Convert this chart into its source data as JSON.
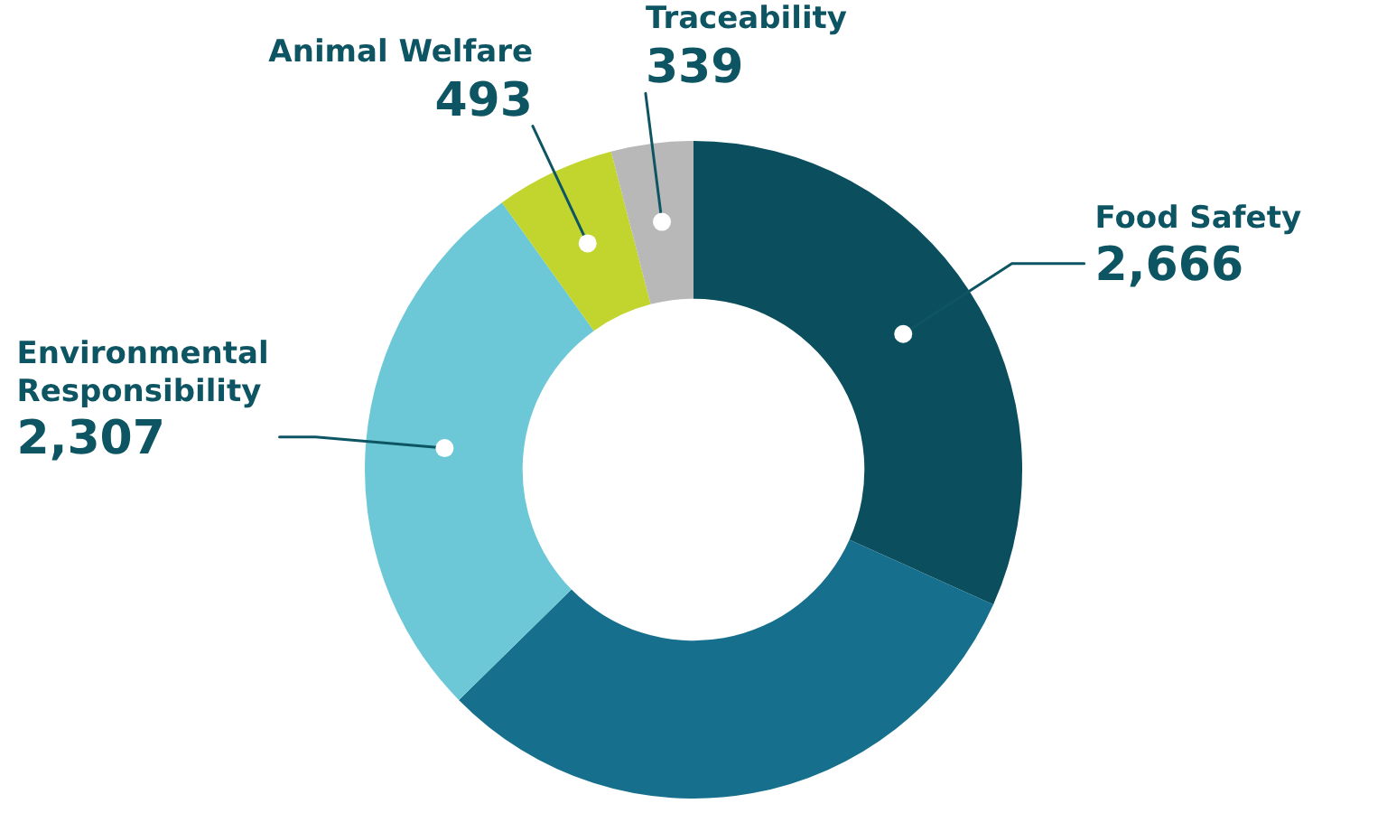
{
  "chart_data": {
    "type": "donut",
    "categories": [
      "Food Safety",
      null,
      "Environmental Responsibility",
      "Animal Welfare",
      "Traceability"
    ],
    "values": [
      2666,
      2600,
      2307,
      493,
      339
    ],
    "value_labels": [
      "2,666",
      null,
      "2,307",
      "493",
      "339"
    ],
    "colors": [
      "#0b4f5e",
      "#166f8c",
      "#6cc8d6",
      "#c2d52f",
      "#b8b8b8"
    ],
    "legend": false
  }
}
